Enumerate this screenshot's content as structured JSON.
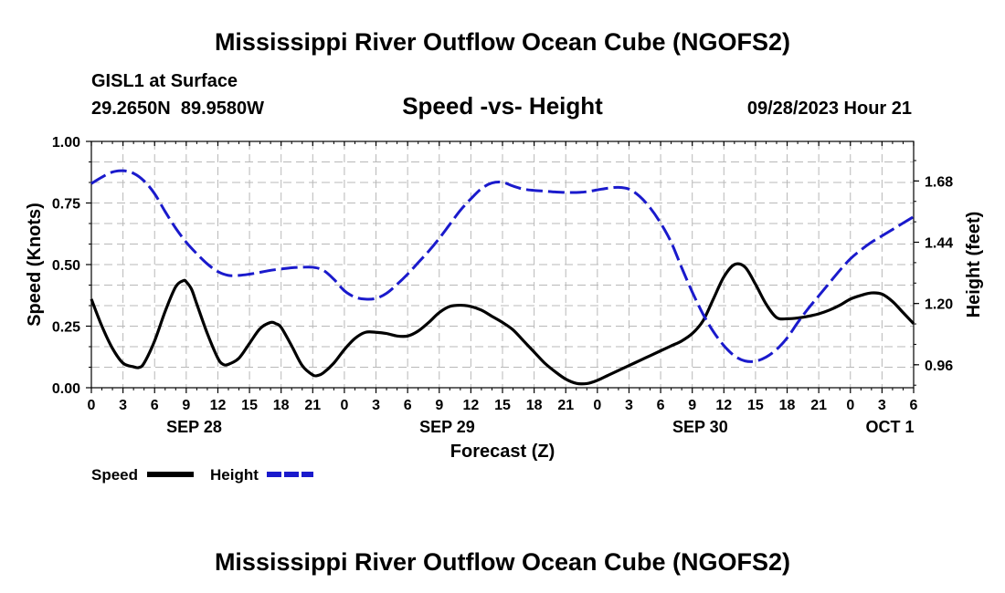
{
  "page": {
    "title_top": "Mississippi River Outflow Ocean Cube (NGOFS2)",
    "title_bottom": "Mississippi River Outflow Ocean Cube (NGOFS2)",
    "station": "GISL1 at Surface",
    "coords": "29.2650N  89.9580W",
    "chart_title": "Speed -vs- Height",
    "timestamp": "09/28/2023 Hour 21"
  },
  "chart_data": {
    "type": "line",
    "title": "Speed -vs- Height",
    "xlabel": "Forecast (Z)",
    "ylabel": "Speed (Knots)",
    "y2label": "Height (feet)",
    "x_range": [
      0,
      78
    ],
    "ylim": [
      0,
      1.0
    ],
    "y2lim": [
      0.87,
      1.835
    ],
    "grid": true,
    "x_ticks": [
      0,
      3,
      6,
      9,
      12,
      15,
      18,
      21,
      24,
      27,
      30,
      33,
      36,
      39,
      42,
      45,
      48,
      51,
      54,
      57,
      60,
      63,
      66,
      69,
      72,
      75,
      78
    ],
    "x_tick_labels": [
      "0",
      "3",
      "6",
      "9",
      "12",
      "15",
      "18",
      "21",
      "0",
      "3",
      "6",
      "9",
      "12",
      "15",
      "18",
      "21",
      "0",
      "3",
      "6",
      "9",
      "12",
      "15",
      "18",
      "21",
      "0",
      "3",
      "6"
    ],
    "date_labels": [
      {
        "label": "SEP 28",
        "x": 9.75
      },
      {
        "label": "SEP 29",
        "x": 33.75
      },
      {
        "label": "SEP 30",
        "x": 57.75
      },
      {
        "label": "OCT 1",
        "x": 75.75
      }
    ],
    "y_ticks": [
      0,
      0.25,
      0.5,
      0.75,
      1.0
    ],
    "y_tick_labels": [
      "0.00",
      "0.25",
      "0.50",
      "0.75",
      "1.00"
    ],
    "y2_ticks": [
      0.96,
      1.2,
      1.44,
      1.68
    ],
    "y2_tick_labels": [
      "0.96",
      "1.20",
      "1.44",
      "1.68"
    ],
    "legend": [
      {
        "name": "Speed",
        "color": "#000000",
        "dash": "solid"
      },
      {
        "name": "Height",
        "color": "#1a1acc",
        "dash": "dashed"
      }
    ],
    "series": [
      {
        "name": "Speed",
        "axis": "left",
        "color": "#000000",
        "dash": "solid",
        "x": [
          0,
          1,
          2,
          3,
          4,
          4.5,
          5,
          6,
          7,
          8,
          8.75,
          9,
          9.5,
          10,
          11,
          12,
          12.5,
          13,
          14,
          15,
          16,
          17,
          17.5,
          18,
          19,
          20,
          21,
          21.5,
          22,
          23,
          24,
          25,
          26,
          27,
          28,
          29,
          30,
          31,
          32,
          33,
          34,
          35,
          36,
          37,
          38,
          39,
          40,
          41,
          42,
          43,
          44,
          45,
          46,
          47,
          48,
          49,
          50,
          51,
          52,
          53,
          54,
          55,
          56,
          57,
          58,
          59,
          60,
          61,
          62,
          63,
          64,
          65,
          66,
          67,
          68,
          69,
          70,
          71,
          72,
          73,
          74,
          75,
          76,
          77,
          78
        ],
        "values": [
          0.36,
          0.25,
          0.16,
          0.1,
          0.085,
          0.082,
          0.1,
          0.19,
          0.31,
          0.41,
          0.435,
          0.43,
          0.4,
          0.34,
          0.22,
          0.12,
          0.095,
          0.095,
          0.12,
          0.18,
          0.24,
          0.265,
          0.26,
          0.245,
          0.17,
          0.09,
          0.052,
          0.05,
          0.06,
          0.1,
          0.155,
          0.2,
          0.225,
          0.225,
          0.22,
          0.21,
          0.21,
          0.23,
          0.265,
          0.305,
          0.33,
          0.335,
          0.33,
          0.315,
          0.29,
          0.265,
          0.235,
          0.19,
          0.145,
          0.1,
          0.065,
          0.035,
          0.018,
          0.017,
          0.03,
          0.05,
          0.07,
          0.09,
          0.11,
          0.13,
          0.15,
          0.17,
          0.19,
          0.22,
          0.27,
          0.36,
          0.45,
          0.5,
          0.49,
          0.42,
          0.34,
          0.285,
          0.28,
          0.283,
          0.29,
          0.3,
          0.315,
          0.335,
          0.36,
          0.375,
          0.385,
          0.38,
          0.35,
          0.305,
          0.26
        ]
      },
      {
        "name": "Height",
        "axis": "right",
        "color": "#1a1acc",
        "dash": "dashed",
        "x": [
          0,
          1,
          2,
          3,
          4,
          5,
          6,
          7,
          8,
          9,
          10,
          11,
          12,
          13,
          14,
          15,
          16,
          17,
          18,
          19,
          20,
          21,
          22,
          23,
          24,
          25,
          26,
          27,
          28,
          29,
          30,
          31,
          32,
          33,
          34,
          35,
          36,
          37,
          38,
          39,
          40,
          41,
          42,
          43,
          44,
          45,
          46,
          47,
          48,
          49,
          50,
          51,
          52,
          53,
          54,
          55,
          56,
          57,
          58,
          59,
          60,
          61,
          62,
          63,
          64,
          65,
          66,
          67,
          68,
          69,
          70,
          71,
          72,
          73,
          74,
          75,
          76,
          77,
          78
        ],
        "values": [
          1.67,
          1.695,
          1.715,
          1.72,
          1.71,
          1.68,
          1.63,
          1.56,
          1.495,
          1.44,
          1.395,
          1.355,
          1.325,
          1.31,
          1.31,
          1.315,
          1.322,
          1.33,
          1.335,
          1.34,
          1.342,
          1.342,
          1.33,
          1.295,
          1.25,
          1.225,
          1.217,
          1.22,
          1.24,
          1.275,
          1.315,
          1.36,
          1.405,
          1.455,
          1.51,
          1.565,
          1.61,
          1.65,
          1.672,
          1.675,
          1.66,
          1.648,
          1.643,
          1.64,
          1.637,
          1.635,
          1.635,
          1.638,
          1.645,
          1.652,
          1.655,
          1.648,
          1.62,
          1.575,
          1.515,
          1.44,
          1.34,
          1.245,
          1.16,
          1.09,
          1.035,
          0.995,
          0.975,
          0.974,
          0.99,
          1.02,
          1.065,
          1.125,
          1.18,
          1.23,
          1.28,
          1.33,
          1.375,
          1.41,
          1.44,
          1.465,
          1.49,
          1.515,
          1.54
        ]
      }
    ]
  }
}
